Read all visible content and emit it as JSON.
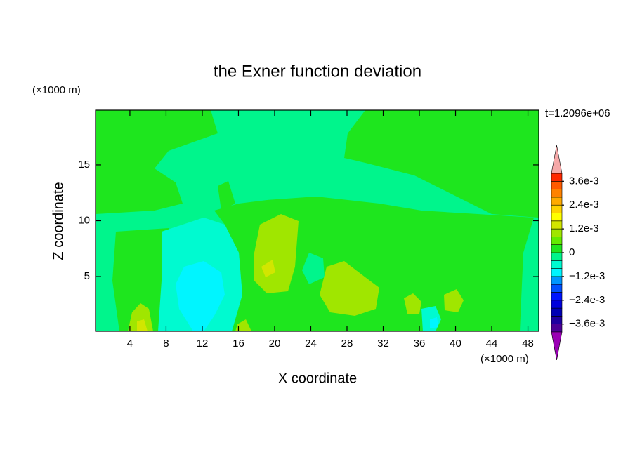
{
  "chart_data": {
    "type": "contour",
    "title": "the Exner function deviation",
    "xlabel": "X coordinate",
    "ylabel": "Z coordinate",
    "x_unit": "(×1000 m)",
    "y_unit": "(×1000 m)",
    "annotation": "t=1.2096e+06",
    "xlim": [
      0.2,
      49.2
    ],
    "ylim": [
      0.1,
      19.9
    ],
    "xticks": [
      4,
      8,
      12,
      16,
      20,
      24,
      28,
      32,
      36,
      40,
      44,
      48
    ],
    "yticks": [
      5,
      10,
      15
    ],
    "levels": [
      -0.004,
      -0.0036,
      -0.0032,
      -0.0028,
      -0.0024,
      -0.002,
      -0.0016,
      -0.0012,
      -0.0008,
      -0.0004,
      0,
      0.0004,
      0.0008,
      0.0012,
      0.0016,
      0.002,
      0.0024,
      0.0028,
      0.0032,
      0.0036,
      0.004
    ],
    "colors": [
      "#4b0096",
      "#1e00a0",
      "#0000b4",
      "#0000dc",
      "#0014ff",
      "#0050ff",
      "#0096ff",
      "#00f5ff",
      "#00fad0",
      "#00f58c",
      "#1ee61e",
      "#64eb00",
      "#a0e600",
      "#d2e600",
      "#ffff00",
      "#ffd200",
      "#ffaa00",
      "#ff8200",
      "#ff5a00",
      "#ff2800"
    ],
    "extend_colors": [
      "#9a00b4",
      "#f5a8a8"
    ],
    "colorbar_ticks": [
      {
        "value": 0.0036,
        "label": "3.6e-3"
      },
      {
        "value": 0.0024,
        "label": "2.4e-3"
      },
      {
        "value": 0.0012,
        "label": "1.2e-3"
      },
      0,
      {
        "value": -0.0012,
        "label": "−1.2e-3"
      },
      {
        "value": -0.0024,
        "label": "−2.4e-3"
      },
      {
        "value": -0.0036,
        "label": "−3.6e-3"
      }
    ]
  }
}
